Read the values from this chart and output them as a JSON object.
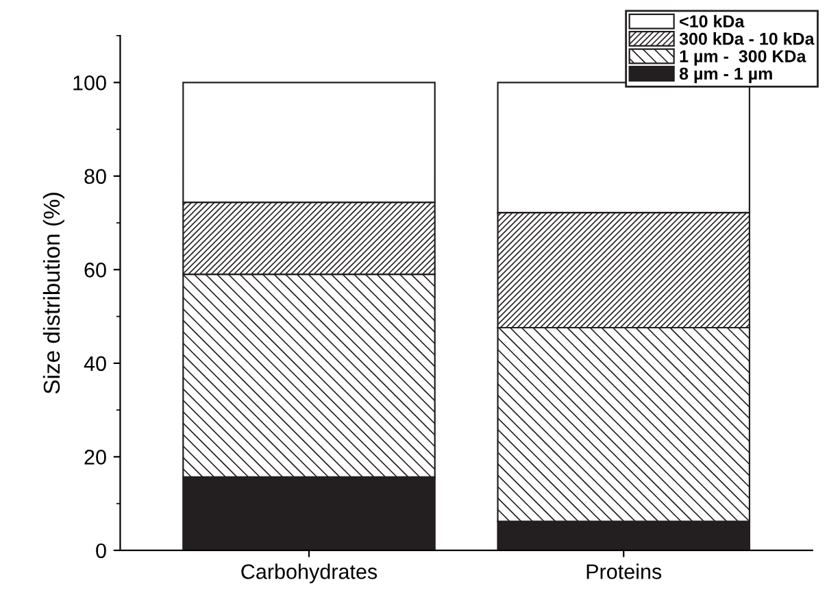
{
  "chart_data": {
    "type": "bar",
    "stacked": true,
    "ylabel": "Size distribution (%)",
    "categories": [
      "Carbohydrates",
      "Proteins"
    ],
    "series": [
      {
        "name": "8 µm - 1 µm",
        "color": "#231f20",
        "values": [
          15.7,
          6.2
        ]
      },
      {
        "name": "1 µm -  300 KDa",
        "color": "#231f20",
        "values": [
          43.3,
          41.4
        ]
      },
      {
        "name": "300 kDa - 10 kDa",
        "color": "#231f20",
        "values": [
          15.4,
          24.6
        ]
      },
      {
        "name": "<10 kDa",
        "color": "#ffffff",
        "values": [
          25.6,
          27.8
        ]
      }
    ],
    "ylim": [
      0,
      110
    ],
    "yticks": [
      0,
      20,
      40,
      60,
      80,
      100
    ],
    "legend": "top right",
    "grid": false
  }
}
